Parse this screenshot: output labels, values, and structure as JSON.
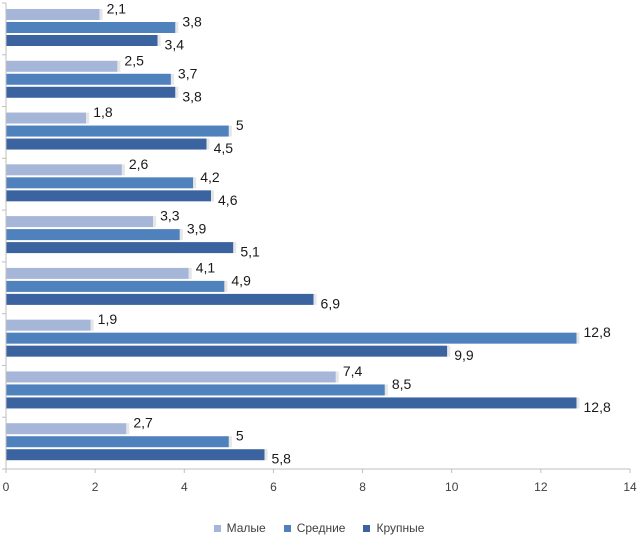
{
  "chart_data": {
    "type": "bar",
    "orientation": "horizontal",
    "xlim": [
      0,
      14
    ],
    "xticks": [
      0,
      2,
      4,
      6,
      8,
      10,
      12,
      14
    ],
    "xtick_labels": [
      "0",
      "2",
      "4",
      "6",
      "8",
      "10",
      "12",
      "14"
    ],
    "categories": [
      "",
      "",
      "",
      "",
      "",
      "",
      "",
      "",
      ""
    ],
    "series": [
      {
        "name": "Малые",
        "color": "#a5b6d9",
        "values": [
          2.1,
          2.5,
          1.8,
          2.6,
          3.3,
          4.1,
          1.9,
          7.4,
          2.7
        ],
        "labels": [
          "2,1",
          "2,5",
          "1,8",
          "2,6",
          "3,3",
          "4,1",
          "1,9",
          "7,4",
          "2,7"
        ]
      },
      {
        "name": "Средние",
        "color": "#4f81bd",
        "values": [
          3.8,
          3.7,
          5,
          4.2,
          3.9,
          4.9,
          12.8,
          8.5,
          5
        ],
        "labels": [
          "3,8",
          "3,7",
          "5",
          "4,2",
          "3,9",
          "4,9",
          "12,8",
          "8,5",
          "5"
        ]
      },
      {
        "name": "Крупные",
        "color": "#3a63a0",
        "values": [
          3.4,
          3.8,
          4.5,
          4.6,
          5.1,
          6.9,
          9.9,
          12.8,
          5.8
        ],
        "labels": [
          "3,4",
          "3,8",
          "4,5",
          "4,6",
          "5,1",
          "6,9",
          "9,9",
          "12,8",
          "5,8"
        ]
      }
    ],
    "title": "",
    "xlabel": "",
    "ylabel": "",
    "grid": false,
    "legend_position": "bottom"
  }
}
